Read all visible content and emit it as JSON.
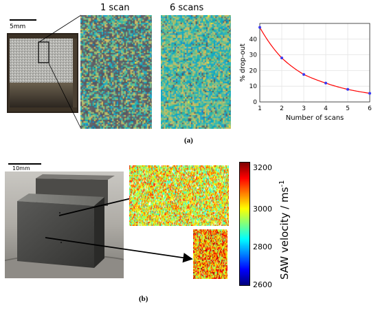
{
  "panel_a": {
    "scale_label": "5mm",
    "heading_1": "1 scan",
    "heading_2": "6 scans",
    "label": "(a)"
  },
  "panel_b": {
    "scale_label": "10mm",
    "label": "(b)",
    "colorbar": {
      "label": "SAW velocity / ms",
      "exponent": "-1",
      "ticks": [
        "3200",
        "3000",
        "2800",
        "2600"
      ]
    }
  },
  "chart_data": {
    "type": "line",
    "x": [
      1,
      2,
      3,
      4,
      5,
      6
    ],
    "series": [
      {
        "values": [
          47.5,
          28,
          17.5,
          12,
          8,
          5.5
        ],
        "color": "#ff0000",
        "marker_color": "#3a3af0"
      }
    ],
    "xlabel": "Number of scans",
    "ylabel": "% drop-out",
    "xlim": [
      1,
      6
    ],
    "ylim": [
      0,
      50
    ],
    "xticks": [
      "1",
      "2",
      "3",
      "4",
      "5",
      "6"
    ],
    "yticks": [
      "0",
      "10",
      "20",
      "30",
      "40"
    ],
    "grid": true
  }
}
